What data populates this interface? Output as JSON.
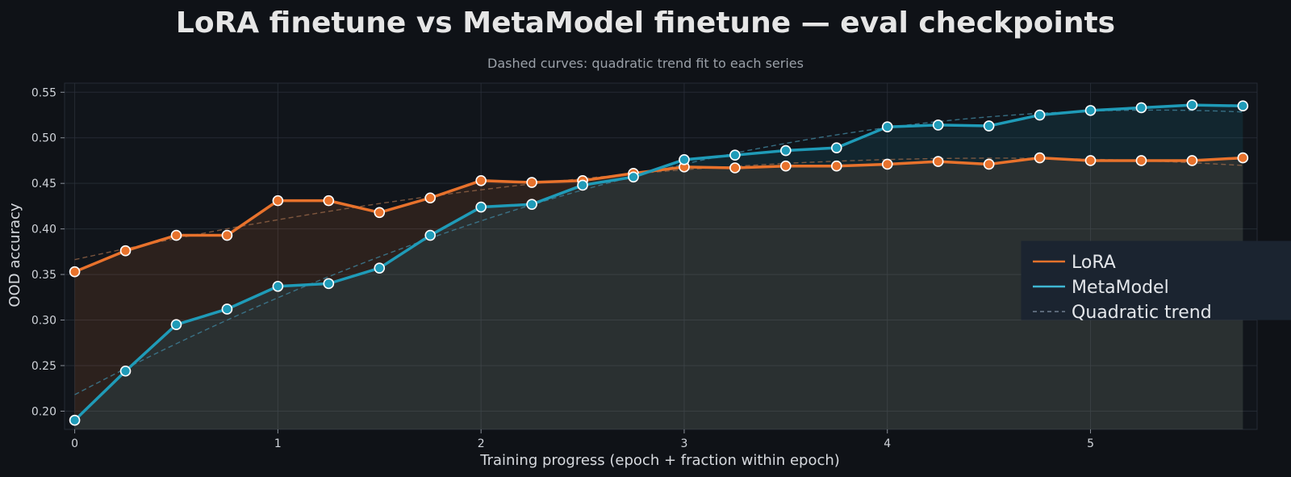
{
  "chart_data": {
    "type": "line",
    "title": "LoRA finetune vs MetaModel finetune — eval checkpoints",
    "subtitle": "Dashed curves: quadratic trend fit to each series",
    "xlabel": "Training progress (epoch + fraction within epoch)",
    "ylabel": "OOD accuracy",
    "xlim": [
      -0.05,
      5.82
    ],
    "ylim": [
      0.18,
      0.56
    ],
    "xticks": [
      0,
      1,
      2,
      3,
      4,
      5
    ],
    "yticks": [
      0.2,
      0.25,
      0.3,
      0.35,
      0.4,
      0.45,
      0.5,
      0.55
    ],
    "grid": true,
    "legend_position": "right",
    "x": [
      0,
      0.25,
      0.5,
      0.75,
      1.0,
      1.25,
      1.5,
      1.75,
      2.0,
      2.25,
      2.5,
      2.75,
      3.0,
      3.25,
      3.5,
      3.75,
      4.0,
      4.25,
      4.5,
      4.75,
      5.0,
      5.25,
      5.5,
      5.75
    ],
    "series": [
      {
        "name": "LoRA",
        "color": "#e8722c",
        "values": [
          0.353,
          0.376,
          0.393,
          0.393,
          0.431,
          0.431,
          0.418,
          0.434,
          0.453,
          0.451,
          0.453,
          0.461,
          0.468,
          0.467,
          0.469,
          0.469,
          0.471,
          0.474,
          0.471,
          0.478,
          0.475,
          0.475,
          0.475,
          0.478
        ]
      },
      {
        "name": "MetaModel",
        "color": "#1f9bb8",
        "values": [
          0.19,
          0.244,
          0.295,
          0.312,
          0.337,
          0.34,
          0.357,
          0.393,
          0.424,
          0.427,
          0.448,
          0.457,
          0.476,
          0.481,
          0.486,
          0.489,
          0.512,
          0.514,
          0.513,
          0.525,
          0.53,
          0.533,
          0.536,
          0.535
        ]
      }
    ],
    "trend_label": "Quadratic trend"
  },
  "colors": {
    "background": "#0f1217",
    "plot_background": "#11151b",
    "grid": "#2a303a",
    "lora": "#e8722c",
    "metamodel": "#1f9bb8",
    "marker_edge": "#ffffff"
  }
}
